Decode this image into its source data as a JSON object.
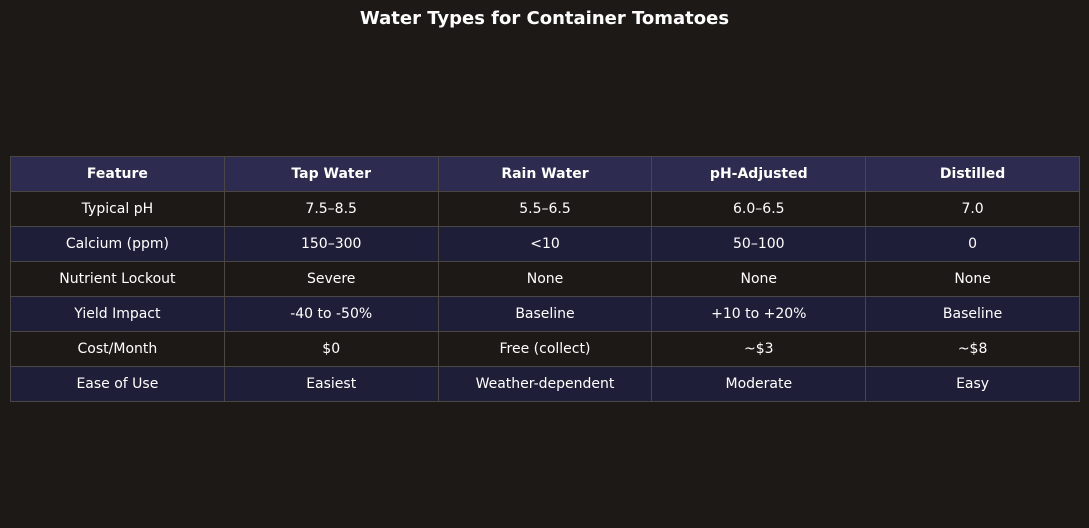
{
  "chart_data": {
    "type": "table",
    "title": "Water Types for Container Tomatoes",
    "columns": [
      "Feature",
      "Tap Water",
      "Rain Water",
      "pH-Adjusted",
      "Distilled"
    ],
    "rows": [
      [
        "Typical pH",
        "7.5–8.5",
        "5.5–6.5",
        "6.0–6.5",
        "7.0"
      ],
      [
        "Calcium (ppm)",
        "150–300",
        "<10",
        "50–100",
        "0"
      ],
      [
        "Nutrient Lockout",
        "Severe",
        "None",
        "None",
        "None"
      ],
      [
        "Yield Impact",
        "-40 to -50%",
        "Baseline",
        "+10 to +20%",
        "Baseline"
      ],
      [
        "Cost/Month",
        "$0",
        "Free (collect)",
        "~$3",
        "~$8"
      ],
      [
        "Ease of Use",
        "Easiest",
        "Weather-dependent",
        "Moderate",
        "Easy"
      ]
    ],
    "colors": {
      "background": "#1d1917",
      "header_bg": "#2d2b4f",
      "row_alt_bg": "#1f1e38",
      "border": "#4a4743",
      "text": "#ffffff"
    }
  }
}
